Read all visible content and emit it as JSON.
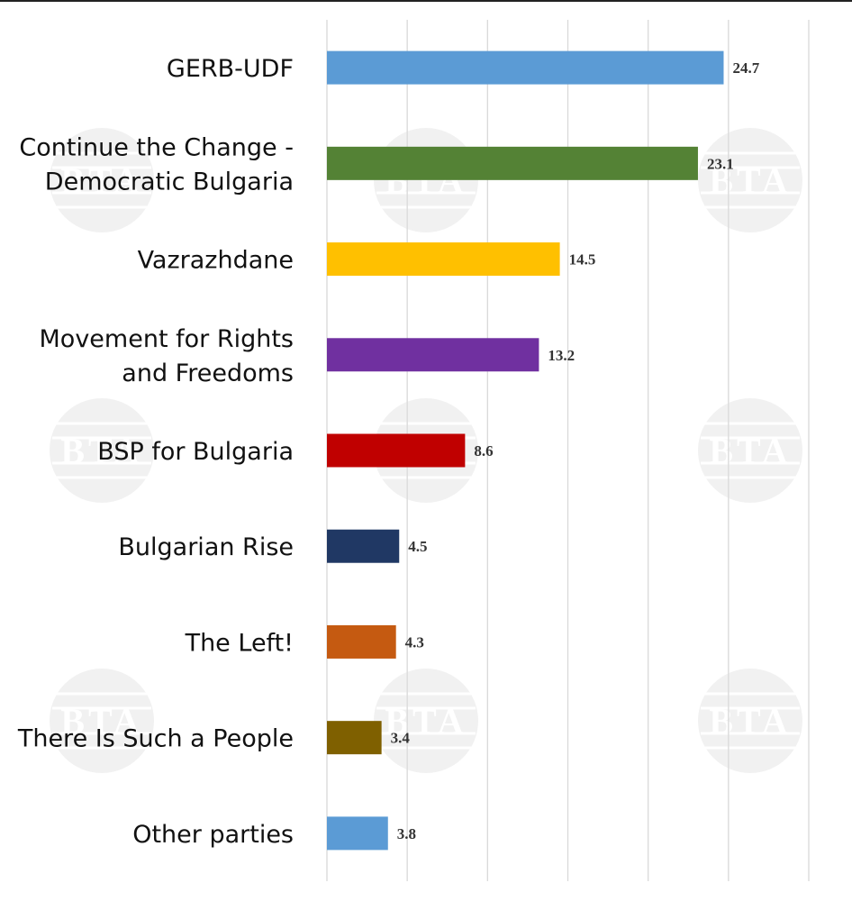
{
  "chart_data": {
    "type": "bar",
    "orientation": "horizontal",
    "title": "",
    "xlabel": "",
    "ylabel": "",
    "xlim": [
      0,
      30
    ],
    "grid": true,
    "categories": [
      [
        "GERB-UDF"
      ],
      [
        "Continue the Change -",
        "Democratic Bulgaria"
      ],
      [
        "Vazrazhdane"
      ],
      [
        "Movement for Rights",
        "and Freedoms"
      ],
      [
        "BSP for Bulgaria"
      ],
      [
        "Bulgarian Rise"
      ],
      [
        "The Left!"
      ],
      [
        "There Is Such a People"
      ],
      [
        "Other parties"
      ]
    ],
    "values": [
      24.7,
      23.1,
      14.5,
      13.2,
      8.6,
      4.5,
      4.3,
      3.4,
      3.8
    ],
    "value_labels": [
      "24.7",
      "23.1",
      "14.5",
      "13.2",
      "8.6",
      "4.5",
      "4.3",
      "3.4",
      "3.8"
    ],
    "colors": [
      "#5b9bd5",
      "#548235",
      "#ffc000",
      "#7030a0",
      "#c00000",
      "#203864",
      "#c55a11",
      "#7f6000",
      "#5b9bd5"
    ]
  },
  "watermark": {
    "text": "BTA",
    "color": "#e6e6e6"
  }
}
